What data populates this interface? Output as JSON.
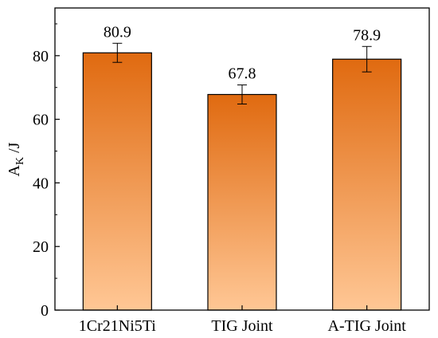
{
  "chart_data": {
    "type": "bar",
    "categories": [
      "1Cr21Ni5Ti",
      "TIG Joint",
      "A-TIG Joint"
    ],
    "values": [
      80.9,
      67.8,
      78.9
    ],
    "value_labels": [
      "80.9",
      "67.8",
      "78.9"
    ],
    "error_bars": [
      3.0,
      3.0,
      4.0
    ],
    "ylabel": {
      "main": "A",
      "sub": "K",
      "unit": " /J"
    },
    "ylim": [
      0,
      95
    ],
    "yticks": [
      0,
      20,
      40,
      60,
      80
    ],
    "grid": false,
    "legend": "none",
    "colors": {
      "bar_top": "#E06A10",
      "bar_bottom": "#FFC795",
      "bar_stroke": "#000000"
    }
  }
}
